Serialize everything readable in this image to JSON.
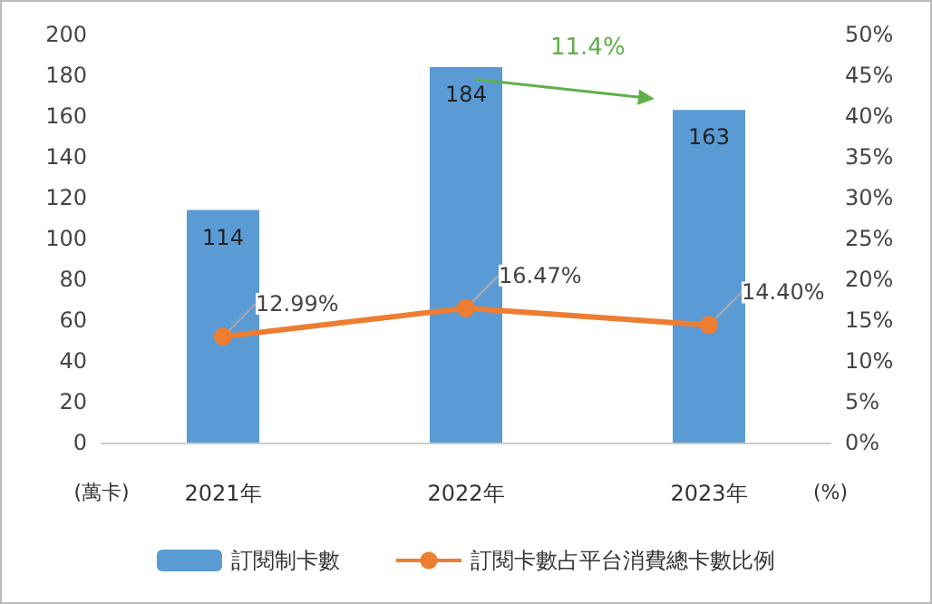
{
  "chart_data": {
    "type": "bar",
    "categories": [
      "2021年",
      "2022年",
      "2023年"
    ],
    "series": [
      {
        "name": "訂閱制卡數",
        "color": "#5b9bd5",
        "values": [
          114,
          184,
          163
        ],
        "value_labels": [
          "114",
          "184",
          "163"
        ]
      },
      {
        "name": "訂閱卡數占平台消費總卡數比例",
        "type": "line",
        "axis": "y2",
        "color": "#ed7d31",
        "values": [
          12.99,
          16.47,
          14.4
        ],
        "value_labels": [
          "12.99%",
          "16.47%",
          "14.40%"
        ]
      }
    ],
    "ylabel": "(萬卡)",
    "y2label": "(%)",
    "ylim": [
      0,
      200
    ],
    "yticks": [
      0,
      20,
      40,
      60,
      80,
      100,
      120,
      140,
      160,
      180,
      200
    ],
    "y2lim": [
      0,
      50
    ],
    "y2ticks": [
      {
        "value": 0,
        "label": "0%"
      },
      {
        "value": 5,
        "label": "5%"
      },
      {
        "value": 10,
        "label": "10%"
      },
      {
        "value": 15,
        "label": "15%"
      },
      {
        "value": 20,
        "label": "20%"
      },
      {
        "value": 25,
        "label": "25%"
      },
      {
        "value": 30,
        "label": "30%"
      },
      {
        "value": 35,
        "label": "35%"
      },
      {
        "value": 40,
        "label": "40%"
      },
      {
        "value": 45,
        "label": "45%"
      },
      {
        "value": 50,
        "label": "50%"
      }
    ],
    "annotations": [
      "11.4%"
    ],
    "legend": "bottom",
    "grid": false,
    "marker": "circle"
  }
}
